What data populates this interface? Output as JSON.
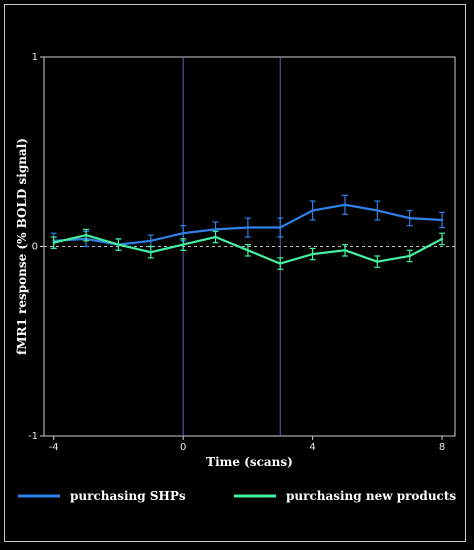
{
  "chart_data": {
    "type": "line",
    "title": "",
    "xlabel": "Time (scans)",
    "ylabel": "fMR1 response (% BOLD signal)",
    "xlim": [
      -4.3,
      8.4
    ],
    "ylim": [
      -1,
      1
    ],
    "x_ticks": [
      -4,
      0,
      4,
      8
    ],
    "y_ticks": [
      -1,
      0,
      1
    ],
    "vertical_markers": [
      0,
      3
    ],
    "zero_line": true,
    "legend_position": "bottom",
    "x": [
      -4,
      -3,
      -2,
      -1,
      0,
      1,
      2,
      3,
      4,
      5,
      6,
      7,
      8
    ],
    "series": [
      {
        "name": "purchasing SHPs",
        "color": "#2f80e8",
        "values": [
          0.03,
          0.04,
          0.01,
          0.03,
          0.07,
          0.09,
          0.1,
          0.1,
          0.19,
          0.22,
          0.19,
          0.15,
          0.14
        ],
        "errors": [
          0.04,
          0.04,
          0.03,
          0.03,
          0.04,
          0.04,
          0.05,
          0.05,
          0.05,
          0.05,
          0.05,
          0.04,
          0.04
        ]
      },
      {
        "name": "purchasing new products",
        "color": "#44f0a0",
        "values": [
          0.02,
          0.06,
          0.01,
          -0.03,
          0.01,
          0.05,
          -0.02,
          -0.09,
          -0.04,
          -0.02,
          -0.08,
          -0.05,
          0.04
        ],
        "errors": [
          0.03,
          0.03,
          0.03,
          0.03,
          0.03,
          0.03,
          0.03,
          0.03,
          0.03,
          0.03,
          0.03,
          0.03,
          0.03
        ]
      }
    ]
  }
}
